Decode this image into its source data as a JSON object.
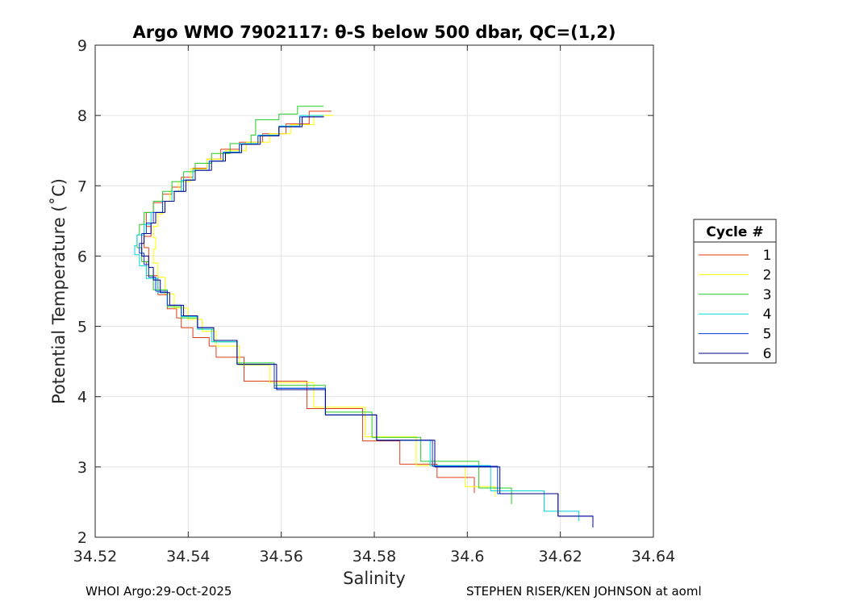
{
  "chart_data": {
    "type": "line",
    "title": "Argo WMO 7902117: θ-S below 500 dbar,  QC=(1,2)",
    "xlabel": "Salinity",
    "ylabel": "Potential Temperature (˚C)",
    "xlim": [
      34.52,
      34.64
    ],
    "ylim": [
      2,
      9
    ],
    "xticks": [
      34.52,
      34.54,
      34.56,
      34.58,
      34.6,
      34.62,
      34.64
    ],
    "xtick_labels": [
      "34.52",
      "34.54",
      "34.56",
      "34.58",
      "34.6",
      "34.62",
      "34.64"
    ],
    "yticks": [
      2,
      3,
      4,
      5,
      6,
      7,
      8,
      9
    ],
    "ytick_labels": [
      "2",
      "3",
      "4",
      "5",
      "6",
      "7",
      "8",
      "9"
    ],
    "grid": true,
    "legend": {
      "title": "Cycle #",
      "placement": "outside-right"
    },
    "series": [
      {
        "name": "1",
        "color": "#e03c1a",
        "s": [
          34.5708,
          34.566,
          34.561,
          34.556,
          34.551,
          34.547,
          34.544,
          34.541,
          34.5385,
          34.5365,
          34.5345,
          34.5325,
          34.531,
          34.532,
          34.5305,
          34.5315,
          34.531,
          34.5335,
          34.5355,
          34.5375,
          34.5385,
          34.541,
          34.5445,
          34.546,
          34.552,
          34.5655,
          34.5775,
          34.5855,
          34.5935,
          34.6015
        ],
        "t": [
          8.06,
          7.88,
          7.74,
          7.62,
          7.52,
          7.38,
          7.25,
          7.12,
          6.98,
          6.88,
          6.76,
          6.62,
          6.42,
          6.28,
          6.12,
          5.92,
          5.72,
          5.45,
          5.25,
          5.12,
          4.98,
          4.84,
          4.72,
          4.56,
          4.22,
          3.83,
          3.37,
          3.04,
          2.85,
          2.63
        ]
      },
      {
        "name": "2",
        "color": "#ffff00",
        "s": [
          34.5712,
          34.567,
          34.562,
          34.5575,
          34.5525,
          34.548,
          34.544,
          34.5405,
          34.538,
          34.536,
          34.5345,
          34.5335,
          34.5325,
          34.533,
          34.5325,
          34.5335,
          34.535,
          34.537,
          34.54,
          34.543,
          34.546,
          34.551,
          34.5575,
          34.567,
          34.578,
          34.589,
          34.5995,
          34.606
        ],
        "t": [
          8.0,
          7.87,
          7.74,
          7.62,
          7.5,
          7.38,
          7.24,
          7.06,
          6.92,
          6.78,
          6.6,
          6.42,
          6.26,
          6.1,
          5.9,
          5.7,
          5.46,
          5.26,
          5.1,
          4.93,
          4.72,
          4.45,
          4.2,
          3.85,
          3.43,
          3.02,
          2.72,
          2.57
        ]
      },
      {
        "name": "3",
        "color": "#22cc22",
        "s": [
          34.5691,
          34.5635,
          34.5595,
          34.5545,
          34.5545,
          34.5535,
          34.549,
          34.545,
          34.5415,
          34.539,
          34.5365,
          34.5345,
          34.5325,
          34.5305,
          34.5295,
          34.529,
          34.53,
          34.5315,
          34.5325,
          34.5355,
          34.5385,
          34.542,
          34.5455,
          34.5505,
          34.5585,
          34.5695,
          34.5795,
          34.59,
          34.6025,
          34.6095
        ],
        "t": [
          8.13,
          8.02,
          7.94,
          7.85,
          7.72,
          7.6,
          7.46,
          7.32,
          7.2,
          7.06,
          6.92,
          6.78,
          6.62,
          6.45,
          6.3,
          6.12,
          5.92,
          5.72,
          5.52,
          5.28,
          5.12,
          4.96,
          4.78,
          4.48,
          4.16,
          3.78,
          3.42,
          3.08,
          2.7,
          2.47
        ]
      },
      {
        "name": "4",
        "color": "#00d8d8",
        "s": [
          34.5691,
          34.564,
          34.5595,
          34.555,
          34.551,
          34.5475,
          34.5445,
          34.541,
          34.5385,
          34.5365,
          34.5345,
          34.532,
          34.5305,
          34.529,
          34.5285,
          34.5295,
          34.531,
          34.5335,
          34.5355,
          34.5385,
          34.542,
          34.545,
          34.5505,
          34.5585,
          34.5695,
          34.5805,
          34.592,
          34.605,
          34.6165,
          34.624
        ],
        "t": [
          8.0,
          7.85,
          7.72,
          7.6,
          7.48,
          7.35,
          7.22,
          7.08,
          6.92,
          6.78,
          6.62,
          6.45,
          6.3,
          6.15,
          6.02,
          5.86,
          5.68,
          5.48,
          5.3,
          5.14,
          4.96,
          4.78,
          4.46,
          4.12,
          3.74,
          3.38,
          3.02,
          2.66,
          2.37,
          2.23
        ]
      },
      {
        "name": "5",
        "color": "#0a3ae0",
        "s": [
          34.569,
          34.564,
          34.5595,
          34.555,
          34.551,
          34.5475,
          34.5445,
          34.5415,
          34.539,
          34.537,
          34.5345,
          34.5325,
          34.531,
          34.53,
          34.5295,
          34.5305,
          34.5315,
          34.533,
          34.5355,
          34.5385,
          34.542,
          34.5455,
          34.5505,
          34.5585,
          34.5695,
          34.5805,
          34.5925,
          34.6065,
          34.6195,
          34.627
        ],
        "t": [
          7.98,
          7.84,
          7.71,
          7.59,
          7.47,
          7.35,
          7.22,
          7.08,
          6.92,
          6.78,
          6.62,
          6.47,
          6.32,
          6.18,
          6.04,
          5.88,
          5.7,
          5.5,
          5.3,
          5.15,
          4.98,
          4.8,
          4.46,
          4.12,
          3.74,
          3.38,
          3.01,
          2.62,
          2.3,
          2.14
        ]
      },
      {
        "name": "6",
        "color": "#00008b",
        "s": [
          34.5692,
          34.5645,
          34.5595,
          34.5555,
          34.5515,
          34.548,
          34.545,
          34.5415,
          34.5395,
          34.537,
          34.535,
          34.533,
          34.532,
          34.5305,
          34.53,
          34.5315,
          34.5325,
          34.534,
          34.536,
          34.539,
          34.542,
          34.5455,
          34.5505,
          34.559,
          34.5695,
          34.5805,
          34.593,
          34.607,
          34.6195,
          34.627
        ],
        "t": [
          7.98,
          7.84,
          7.71,
          7.59,
          7.47,
          7.35,
          7.22,
          7.08,
          6.92,
          6.78,
          6.62,
          6.47,
          6.32,
          6.18,
          6.0,
          5.84,
          5.66,
          5.48,
          5.3,
          5.15,
          4.98,
          4.8,
          4.46,
          4.1,
          3.74,
          3.38,
          3.0,
          2.62,
          2.3,
          2.14
        ]
      }
    ]
  },
  "footer": {
    "left": "WHOI Argo:29-Oct-2025",
    "right": "STEPHEN RISER/KEN JOHNSON at aoml"
  }
}
